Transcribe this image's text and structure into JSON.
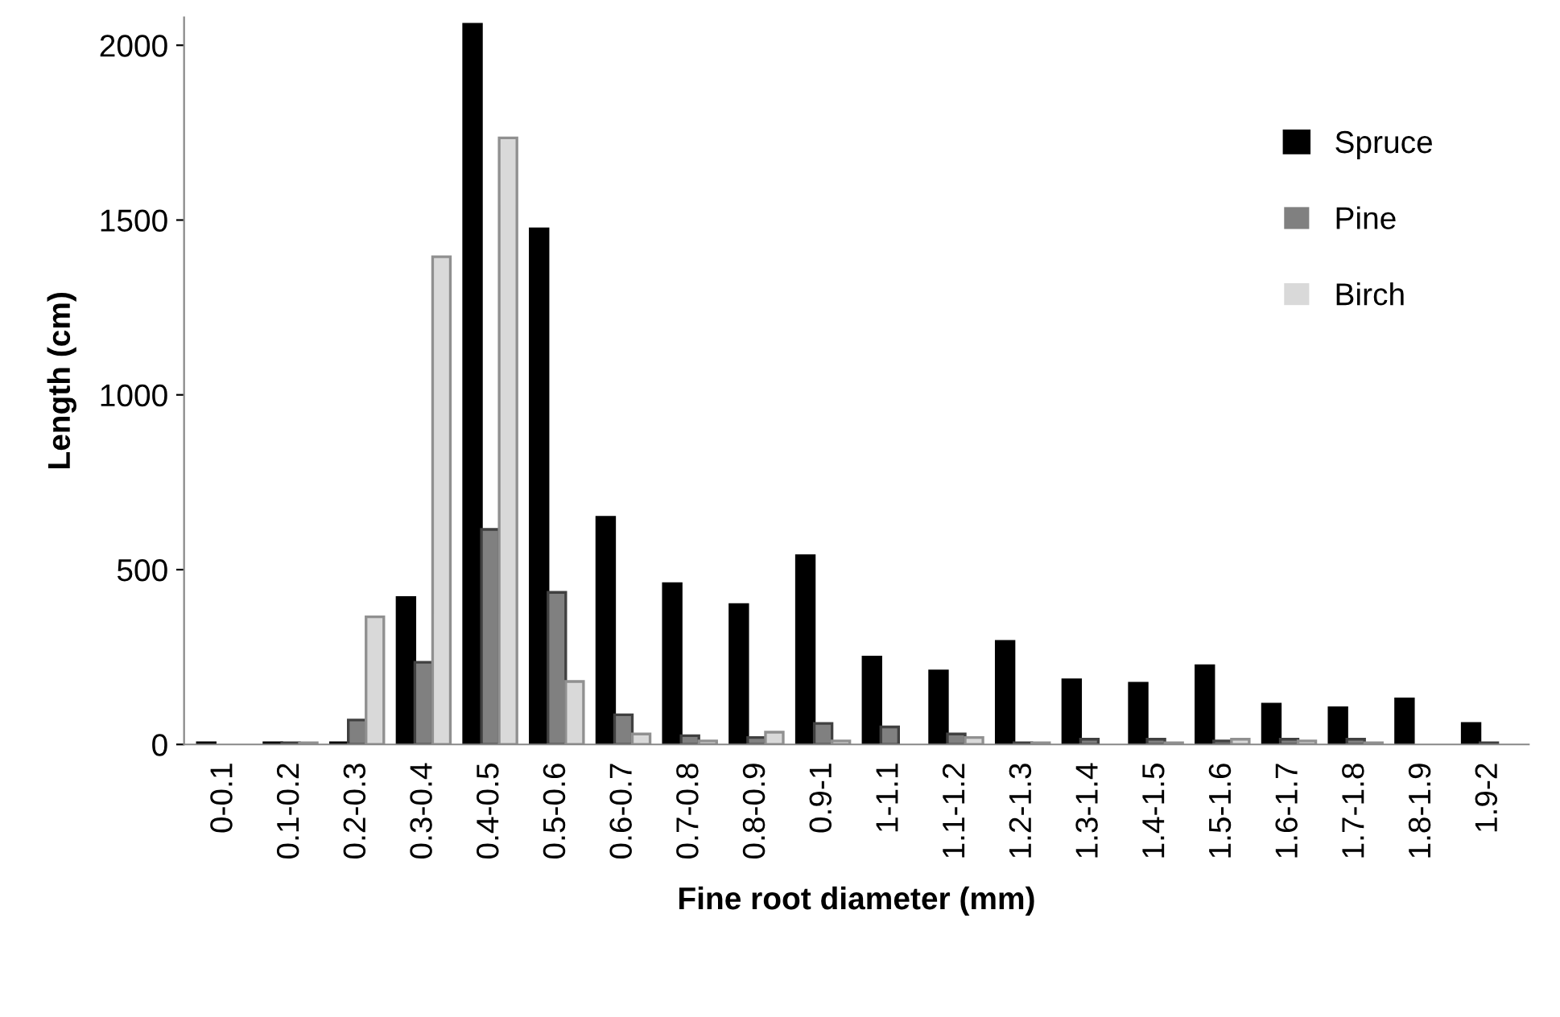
{
  "chart_data": {
    "type": "bar",
    "xlabel": "Fine root diameter (mm)",
    "ylabel": "Length (cm)",
    "categories": [
      "0-0.1",
      "0.1-0.2",
      "0.2-0.3",
      "0.3-0.4",
      "0.4-0.5",
      "0.5-0.6",
      "0.6-0.7",
      "0.7-0.8",
      "0.8-0.9",
      "0.9-1",
      "1-1.1",
      "1.1-1.2",
      "1.2-1.3",
      "1.3-1.4",
      "1.4-1.5",
      "1.5-1.6",
      "1.6-1.7",
      "1.7-1.8",
      "1.8-1.9",
      "1.9-2"
    ],
    "series": [
      {
        "name": "Spruce",
        "color": "#000000",
        "values": [
          5,
          5,
          5,
          420,
          2060,
          1475,
          650,
          460,
          400,
          540,
          250,
          210,
          295,
          185,
          175,
          225,
          115,
          105,
          130,
          60
        ]
      },
      {
        "name": "Pine",
        "color": "#808080",
        "values": [
          0,
          5,
          70,
          235,
          615,
          435,
          85,
          25,
          20,
          60,
          50,
          30,
          5,
          15,
          15,
          10,
          15,
          15,
          0,
          5
        ]
      },
      {
        "name": "Birch",
        "color": "#d9d9d9",
        "values": [
          0,
          5,
          365,
          1395,
          1735,
          180,
          30,
          10,
          35,
          10,
          0,
          20,
          5,
          0,
          5,
          15,
          10,
          5,
          0,
          0
        ]
      }
    ],
    "ylim": [
      0,
      2080
    ],
    "yticks": [
      0,
      500,
      1000,
      1500,
      2000
    ],
    "grid": false,
    "legend": "right"
  }
}
